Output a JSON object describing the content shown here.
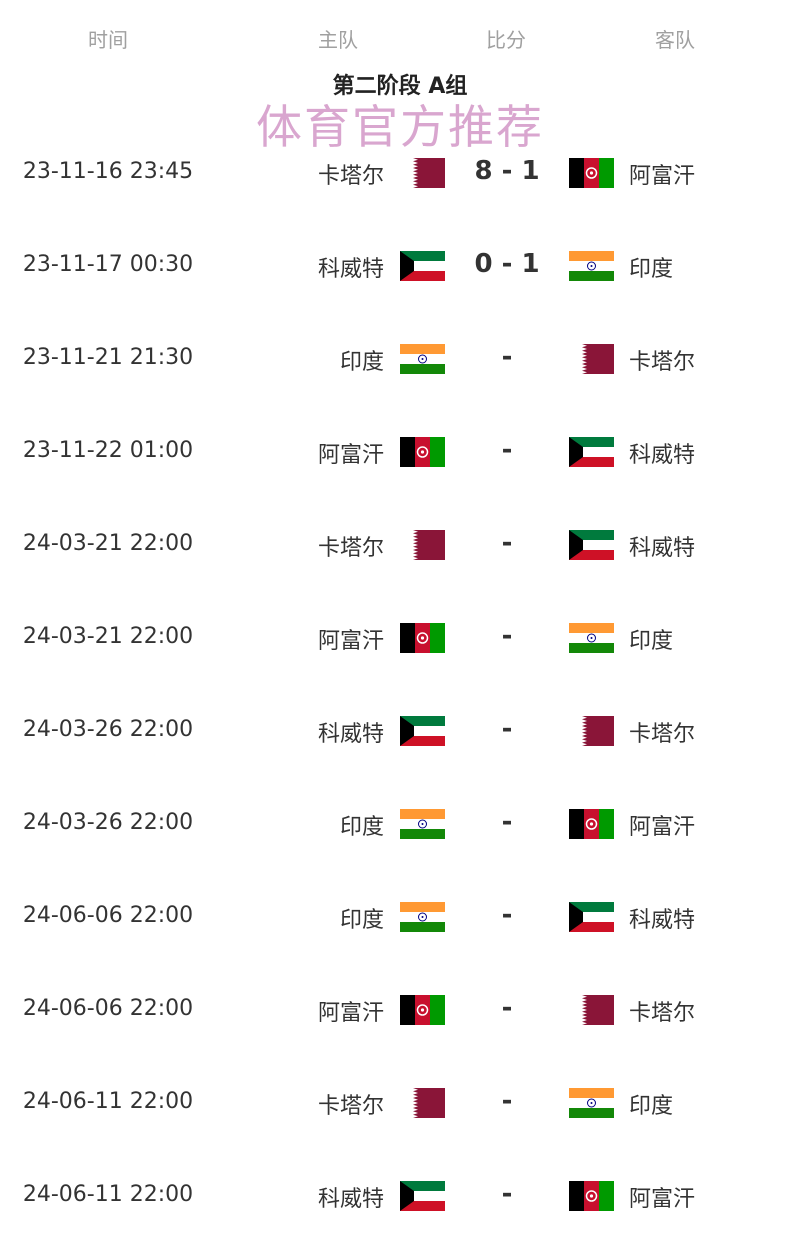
{
  "header": {
    "time": "时间",
    "home": "主队",
    "score": "比分",
    "away": "客队"
  },
  "title": "第二阶段 A组",
  "matches": [
    {
      "time": "23-11-16 23:45",
      "home": "卡塔尔",
      "home_flag": "qatar",
      "score": "8 - 1",
      "away": "阿富汗",
      "away_flag": "afghanistan"
    },
    {
      "time": "23-11-17 00:30",
      "home": "科威特",
      "home_flag": "kuwait",
      "score": "0 - 1",
      "away": "印度",
      "away_flag": "india"
    },
    {
      "time": "23-11-21 21:30",
      "home": "印度",
      "home_flag": "india",
      "score": "-",
      "away": "卡塔尔",
      "away_flag": "qatar"
    },
    {
      "time": "23-11-22 01:00",
      "home": "阿富汗",
      "home_flag": "afghanistan",
      "score": "-",
      "away": "科威特",
      "away_flag": "kuwait"
    },
    {
      "time": "24-03-21 22:00",
      "home": "卡塔尔",
      "home_flag": "qatar",
      "score": "-",
      "away": "科威特",
      "away_flag": "kuwait"
    },
    {
      "time": "24-03-21 22:00",
      "home": "阿富汗",
      "home_flag": "afghanistan",
      "score": "-",
      "away": "印度",
      "away_flag": "india"
    },
    {
      "time": "24-03-26 22:00",
      "home": "科威特",
      "home_flag": "kuwait",
      "score": "-",
      "away": "卡塔尔",
      "away_flag": "qatar"
    },
    {
      "time": "24-03-26 22:00",
      "home": "印度",
      "home_flag": "india",
      "score": "-",
      "away": "阿富汗",
      "away_flag": "afghanistan"
    },
    {
      "time": "24-06-06 22:00",
      "home": "印度",
      "home_flag": "india",
      "score": "-",
      "away": "科威特",
      "away_flag": "kuwait"
    },
    {
      "time": "24-06-06 22:00",
      "home": "阿富汗",
      "home_flag": "afghanistan",
      "score": "-",
      "away": "卡塔尔",
      "away_flag": "qatar"
    },
    {
      "time": "24-06-11 22:00",
      "home": "卡塔尔",
      "home_flag": "qatar",
      "score": "-",
      "away": "印度",
      "away_flag": "india"
    },
    {
      "time": "24-06-11 22:00",
      "home": "科威特",
      "home_flag": "kuwait",
      "score": "-",
      "away": "阿富汗",
      "away_flag": "afghanistan"
    }
  ],
  "watermark": "体育官方推荐"
}
